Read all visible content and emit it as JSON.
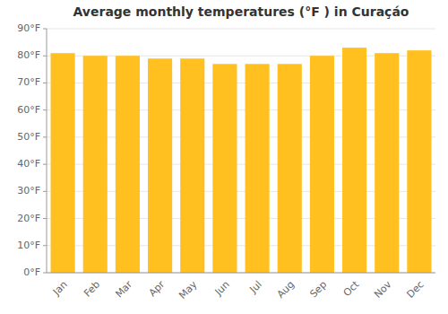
{
  "chart_data": {
    "type": "bar",
    "title": "Average monthly temperatures (°F ) in Curaçáo",
    "categories": [
      "Jan",
      "Feb",
      "Mar",
      "Apr",
      "May",
      "Jun",
      "Jul",
      "Aug",
      "Sep",
      "Oct",
      "Nov",
      "Dec"
    ],
    "values": [
      81,
      80,
      80,
      79,
      79,
      77,
      77,
      77,
      80,
      83,
      81,
      82
    ],
    "color": "#FFC020",
    "ylim": [
      0,
      90
    ],
    "yticks": [
      {
        "value": 0,
        "label": "0°F"
      },
      {
        "value": 10,
        "label": "10°F"
      },
      {
        "value": 20,
        "label": "20°F"
      },
      {
        "value": 30,
        "label": "30°F"
      },
      {
        "value": 40,
        "label": "40°F"
      },
      {
        "value": 50,
        "label": "50°F"
      },
      {
        "value": 60,
        "label": "60°F"
      },
      {
        "value": 70,
        "label": "70°F"
      },
      {
        "value": 80,
        "label": "80°F"
      },
      {
        "value": 90,
        "label": "90°F"
      }
    ],
    "grid": true
  }
}
